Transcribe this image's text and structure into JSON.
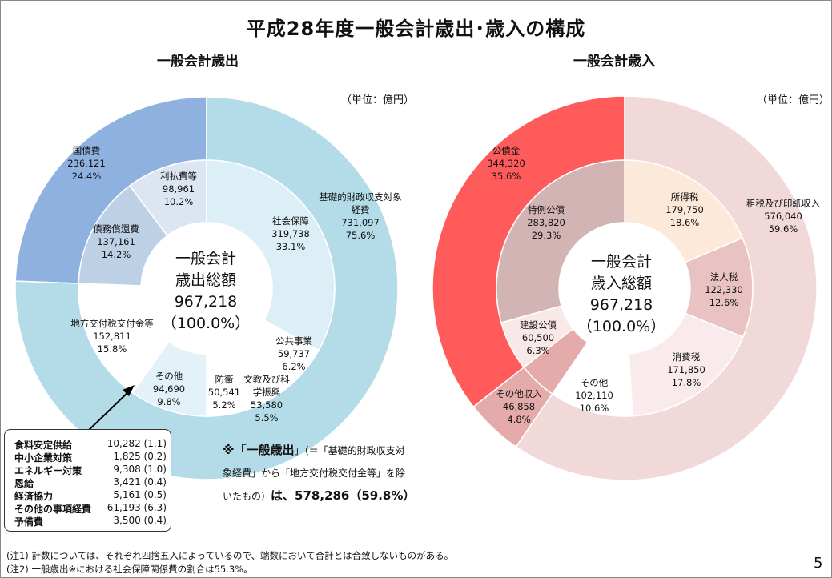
{
  "title": "平成28年度一般会計歳出･歳入の構成",
  "unit_label": "（単位：億円）",
  "chart_data": [
    {
      "type": "pie",
      "title": "一般会計歳出",
      "center_text": [
        "一般会計",
        "歳出総額",
        "967,218",
        "（100.0%）"
      ],
      "outer_ring": [
        {
          "name": "国債費",
          "value": 236121,
          "percent": "24.4%",
          "color": "#8EB1DF"
        },
        {
          "name": "基礎的財政収支対象経費",
          "value": 731097,
          "percent": "75.6%",
          "color": "#B3DCE8"
        }
      ],
      "inner_ring": [
        {
          "name": "社会保障",
          "value": 319738,
          "percent": "33.1%",
          "color": "#DDEFF6"
        },
        {
          "name": "公共事業",
          "value": 59737,
          "percent": "6.2%",
          "color": "#FFFFFF"
        },
        {
          "name": "文教及び科学振興",
          "value": 53580,
          "percent": "5.5%",
          "color": "#FFFFFF"
        },
        {
          "name": "防衛",
          "value": 50541,
          "percent": "5.2%",
          "color": "#FFFFFF"
        },
        {
          "name": "その他",
          "value": 94690,
          "percent": "9.8%",
          "color": "#E3F1F8"
        },
        {
          "name": "地方交付税交付金等",
          "value": 152811,
          "percent": "15.8%",
          "color": "#FFFFFF"
        },
        {
          "name": "債務償還費",
          "value": 137161,
          "percent": "14.2%",
          "color": "#BDD0E6"
        },
        {
          "name": "利払費等",
          "value": 98961,
          "percent": "10.2%",
          "color": "#DCE6F2"
        }
      ],
      "other_breakdown": [
        {
          "name": "食料安定供給",
          "value": "10,282 (1.1)"
        },
        {
          "name": "中小企業対策",
          "value": "1,825 (0.2)"
        },
        {
          "name": "エネルギー対策",
          "value": "9,308 (1.0)"
        },
        {
          "name": "恩給",
          "value": "3,421 (0.4)"
        },
        {
          "name": "経済協力",
          "value": "5,161 (0.5)"
        },
        {
          "name": "その他の事項経費",
          "value": "61,193 (6.3)"
        },
        {
          "name": "予備費",
          "value": "3,500 (0.4)"
        }
      ]
    },
    {
      "type": "pie",
      "title": "一般会計歳入",
      "center_text": [
        "一般会計",
        "歳入総額",
        "967,218",
        "（100.0%）"
      ],
      "outer_ring": [
        {
          "name": "公債金",
          "value": 344320,
          "percent": "35.6%",
          "color": "#FF5B5B"
        },
        {
          "name": "租税及び印紙収入",
          "value": 576040,
          "percent": "59.6%",
          "color": "#F2D9D9"
        },
        {
          "name": "その他収入",
          "value": 46858,
          "percent": "4.8%",
          "color": "#E5AAAA"
        }
      ],
      "inner_ring": [
        {
          "name": "所得税",
          "value": 179750,
          "percent": "18.6%",
          "color": "#FDE9D9"
        },
        {
          "name": "法人税",
          "value": 122330,
          "percent": "12.6%",
          "color": "#E9C3C3"
        },
        {
          "name": "消費税",
          "value": 171850,
          "percent": "17.8%",
          "color": "#F9EBEB"
        },
        {
          "name": "その他",
          "value": 102110,
          "percent": "10.6%",
          "color": "#FFFFFF"
        },
        {
          "name": "その他収入",
          "value": 46858,
          "percent": "4.8%",
          "color": "#E5AAAA"
        },
        {
          "name": "建設公債",
          "value": 60500,
          "percent": "6.3%",
          "color": "#F8E8E8"
        },
        {
          "name": "特例公債",
          "value": 283820,
          "percent": "29.3%",
          "color": "#D2B4B4"
        }
      ]
    }
  ],
  "note": {
    "line1_prefix": "※「",
    "line1_bold": "一般歳出",
    "line1_suffix": "」（＝「基礎的財政収支対",
    "line2": "象経費」から「地方交付税交付金等」を除",
    "line3_prefix": "いたもの）",
    "line3_bold": "は、578,286（59.8%）"
  },
  "footnotes": [
    "(注1) 計数については、それぞれ四捨五入によっているので、端数において合計とは合致しないものがある。",
    "(注2) 一般歳出※における社会保障関係費の割合は55.3%。"
  ],
  "page_number": "5"
}
